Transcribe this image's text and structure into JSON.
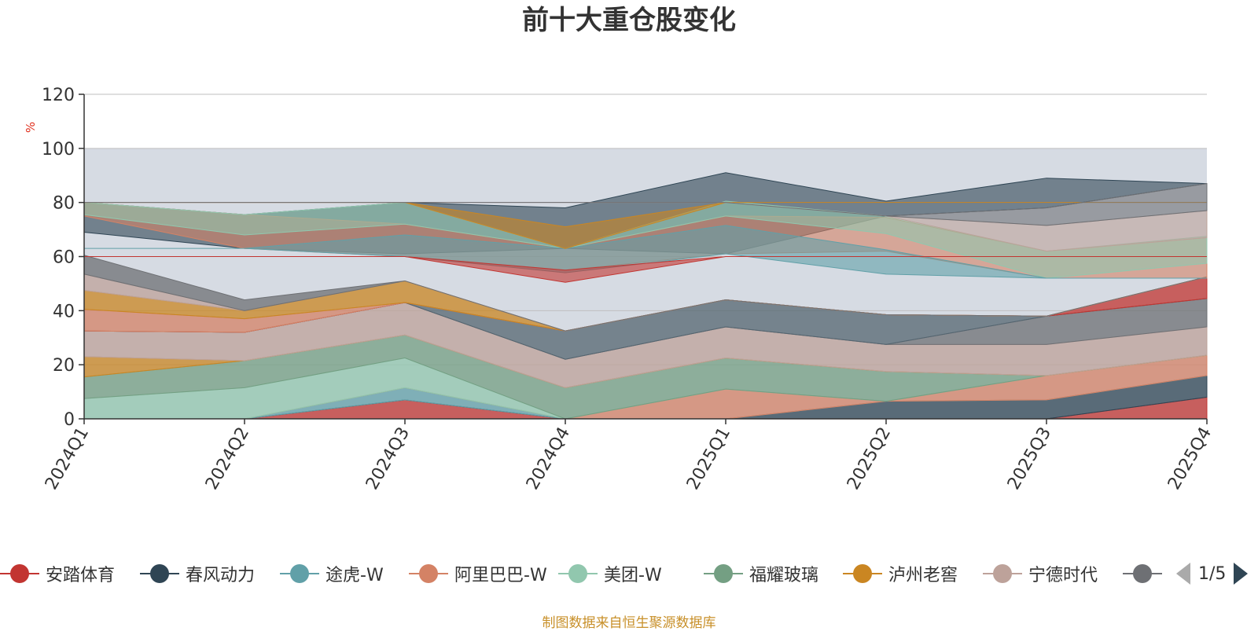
{
  "chart_data": {
    "type": "area",
    "title": "前十大重仓股变化",
    "ylabel": "%",
    "ylim": [
      0,
      120
    ],
    "yticks": [
      0,
      20,
      40,
      60,
      80,
      100,
      120
    ],
    "categories": [
      "2024Q1",
      "2024Q2",
      "2024Q3",
      "2024Q4",
      "2025Q1",
      "2025Q2",
      "2025Q3",
      "2025Q4"
    ],
    "legend_position": "bottom",
    "legend_page": "1/5",
    "source_note": "制图数据来自恒生聚源数据库",
    "series": [
      {
        "name": "安踏体育",
        "color": "#c23531",
        "values": [
          0,
          0,
          7,
          0,
          0,
          0,
          0,
          8
        ]
      },
      {
        "name": "春风动力",
        "color": "#2f4554",
        "values": [
          0,
          0,
          0,
          0,
          0,
          6.5,
          7,
          8
        ]
      },
      {
        "name": "途虎-W",
        "color": "#61a0a8",
        "values": [
          0,
          0,
          4.5,
          0,
          0,
          0,
          0,
          0
        ]
      },
      {
        "name": "阿里巴巴-W",
        "color": "#d48265",
        "values": [
          0,
          0,
          0,
          0,
          11,
          0,
          9,
          7.5
        ]
      },
      {
        "name": "美团-W",
        "color": "#91c7ae",
        "values": [
          7.5,
          11.5,
          11,
          0,
          0,
          0,
          0,
          0
        ]
      },
      {
        "name": "福耀玻璃",
        "color": "#749f83",
        "values": [
          8,
          10,
          8.5,
          11.5,
          11.5,
          11,
          0,
          0
        ]
      },
      {
        "name": "泸州老窖",
        "color": "#ca8622",
        "values": [
          7.5,
          0,
          0,
          0,
          0,
          0,
          0,
          0
        ]
      },
      {
        "name": "宁德时代",
        "color": "#bda29a",
        "values": [
          9.5,
          10.5,
          12,
          10.5,
          11.5,
          10,
          11.5,
          10.5
        ]
      },
      {
        "name": "",
        "color": "#6e7074",
        "values": [
          0,
          0,
          0,
          0,
          0,
          0,
          10.5,
          10.5
        ]
      },
      {
        "name": "",
        "color": "#546570",
        "values": [
          0,
          0,
          0,
          10.5,
          10,
          11,
          0,
          0
        ]
      },
      {
        "name": "",
        "color": "#c23531",
        "values": [
          0,
          0,
          0,
          0,
          0,
          0,
          0,
          8
        ]
      },
      {
        "name": "",
        "color": "#d48265",
        "values": [
          8,
          5,
          0,
          0,
          0,
          0,
          0,
          0
        ]
      },
      {
        "name": "",
        "color": "#ca8622",
        "values": [
          7,
          3,
          8,
          0,
          0,
          0,
          0,
          0
        ]
      },
      {
        "name": "",
        "color": "#bda29a",
        "values": [
          6,
          0,
          0,
          0,
          0,
          0,
          0,
          0
        ]
      },
      {
        "name": "",
        "color": "#6e7074",
        "values": [
          7,
          4,
          0,
          0,
          0,
          0,
          0,
          0
        ]
      },
      {
        "name": "",
        "color": "#d0d6e0",
        "values": [
          0,
          0,
          0,
          0,
          0,
          0,
          0,
          0
        ]
      }
    ],
    "band_top_series": [
      {
        "name": "",
        "color": "#2f4554",
        "lower": [
          69,
          63,
          61,
          63,
          61,
          75,
          78,
          87
        ],
        "upper": [
          80,
          75.5,
          80,
          78,
          91,
          80.5,
          89,
          87
        ]
      },
      {
        "name": "",
        "color": "#d48265",
        "lower": [
          75,
          63,
          60,
          55,
          61,
          62,
          52,
          52
        ],
        "upper": [
          80,
          75.5,
          72,
          63,
          75,
          74.5,
          62,
          67
        ]
      },
      {
        "name": "",
        "color": "#91c7ae",
        "lower": [
          75.5,
          68,
          72,
          63,
          75,
          68.5,
          52,
          57.5
        ],
        "upper": [
          80,
          75.5,
          80,
          63,
          80.5,
          75,
          62,
          67.5
        ]
      },
      {
        "name": "",
        "color": "#61a0a8",
        "lower": [
          63,
          63,
          60,
          54,
          61,
          53.5,
          52,
          52
        ],
        "upper": [
          63,
          63,
          68,
          63,
          71.5,
          62.5,
          52,
          52
        ]
      },
      {
        "name": "",
        "color": "#ca8622",
        "lower": [
          80,
          80,
          80,
          63,
          80,
          80,
          80,
          80
        ],
        "upper": [
          80,
          80,
          80,
          71,
          80,
          80,
          80,
          80
        ]
      },
      {
        "name": "",
        "color": "#c23531",
        "lower": [
          60,
          60,
          60,
          50.5,
          60,
          60,
          60,
          60
        ],
        "upper": [
          60,
          60,
          60,
          55,
          60,
          60,
          60,
          60
        ]
      },
      {
        "name": "",
        "color": "#bda29a",
        "lower": [
          80,
          80,
          80,
          80,
          80,
          75,
          62,
          67
        ],
        "upper": [
          80,
          80,
          80,
          80,
          80,
          75,
          71.5,
          77
        ]
      },
      {
        "name": "",
        "color": "#6e7074",
        "lower": [
          80,
          80,
          80,
          80,
          80,
          75,
          71.5,
          77
        ],
        "upper": [
          80,
          80,
          80,
          80,
          80,
          75,
          78,
          87
        ]
      }
    ]
  }
}
